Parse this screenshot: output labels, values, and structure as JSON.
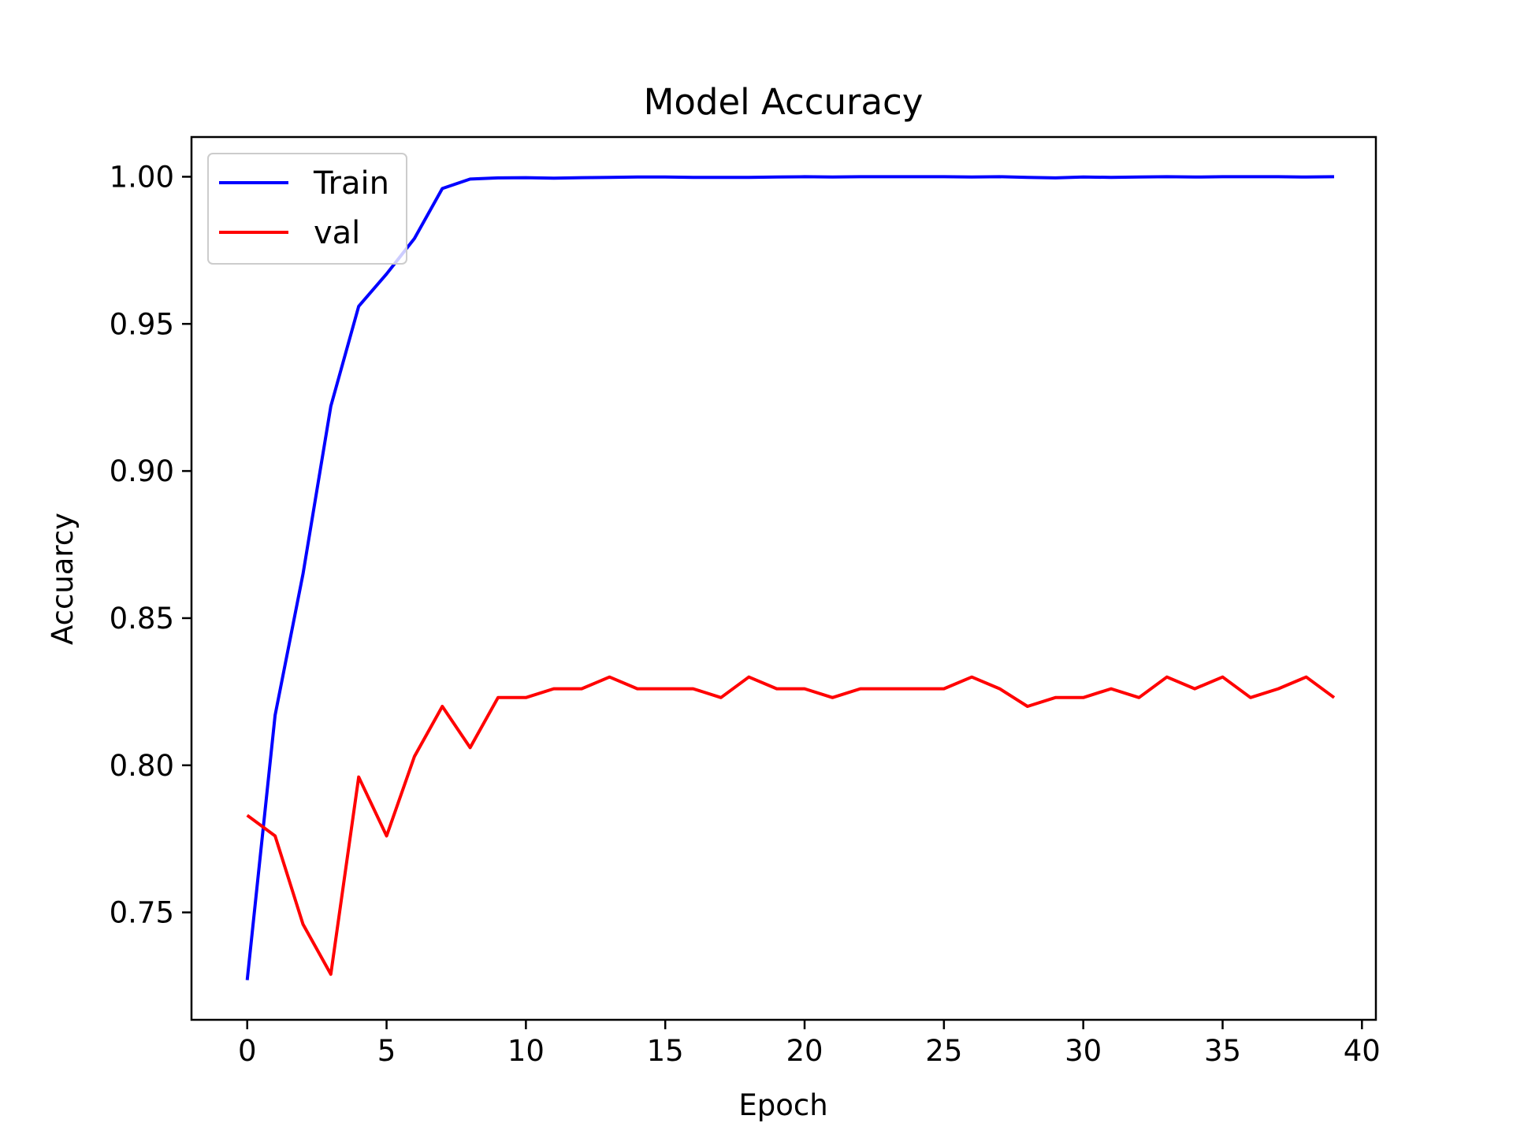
{
  "chart_data": {
    "type": "line",
    "title": "Model Accuracy",
    "xlabel": "Epoch",
    "ylabel": "Accuarcy",
    "xlim": [
      -2,
      40.5
    ],
    "ylim": [
      0.7135,
      1.0135
    ],
    "xticks": [
      0,
      5,
      10,
      15,
      20,
      25,
      30,
      35,
      40
    ],
    "xtick_labels": [
      "0",
      "5",
      "10",
      "15",
      "20",
      "25",
      "30",
      "35",
      "40"
    ],
    "yticks": [
      0.75,
      0.8,
      0.85,
      0.9,
      0.95,
      1.0
    ],
    "ytick_labels": [
      "0.75",
      "0.80",
      "0.85",
      "0.90",
      "0.95",
      "1.00"
    ],
    "grid": false,
    "legend_position": "top-left",
    "x": [
      0,
      1,
      2,
      3,
      4,
      5,
      6,
      7,
      8,
      9,
      10,
      11,
      12,
      13,
      14,
      15,
      16,
      17,
      18,
      19,
      20,
      21,
      22,
      23,
      24,
      25,
      26,
      27,
      28,
      29,
      30,
      31,
      32,
      33,
      34,
      35,
      36,
      37,
      38,
      39
    ],
    "series": [
      {
        "name": "Train",
        "color": "#0000ff",
        "values": [
          0.727,
          0.817,
          0.865,
          0.922,
          0.956,
          0.967,
          0.979,
          0.996,
          0.9992,
          0.9996,
          0.9997,
          0.9995,
          0.9997,
          0.9998,
          0.9999,
          0.9999,
          0.9998,
          0.9998,
          0.9998,
          0.9999,
          1.0,
          0.9999,
          1.0,
          1.0,
          1.0,
          1.0,
          0.9999,
          1.0,
          0.9998,
          0.9996,
          0.9999,
          0.9998,
          0.9999,
          1.0,
          0.9999,
          1.0,
          1.0,
          1.0,
          0.9999,
          1.0
        ]
      },
      {
        "name": "val",
        "color": "#ff0000",
        "values": [
          0.783,
          0.776,
          0.746,
          0.729,
          0.796,
          0.776,
          0.803,
          0.82,
          0.806,
          0.823,
          0.823,
          0.826,
          0.826,
          0.83,
          0.826,
          0.826,
          0.826,
          0.823,
          0.83,
          0.826,
          0.826,
          0.823,
          0.826,
          0.826,
          0.826,
          0.826,
          0.83,
          0.826,
          0.82,
          0.823,
          0.823,
          0.826,
          0.823,
          0.83,
          0.826,
          0.83,
          0.823,
          0.826,
          0.83,
          0.823
        ]
      }
    ]
  }
}
